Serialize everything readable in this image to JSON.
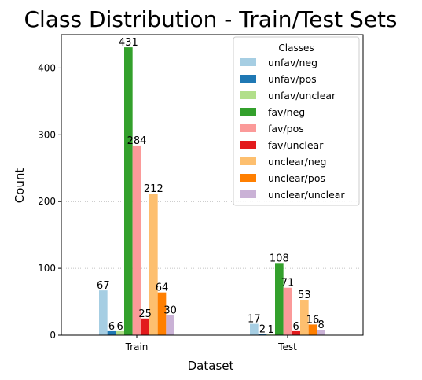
{
  "chart_data": {
    "type": "bar",
    "title": "Class Distribution - Train/Test Sets",
    "xlabel": "Dataset",
    "ylabel": "Count",
    "categories": [
      "Train",
      "Test"
    ],
    "ylim": [
      0,
      450
    ],
    "yticks": [
      0,
      100,
      200,
      300,
      400
    ],
    "grid": "y, dotted",
    "legend": {
      "title": "Classes",
      "placement": "top-right"
    },
    "series": [
      {
        "name": "unfav/neg",
        "color": "#a6cee3",
        "values": [
          67,
          17
        ]
      },
      {
        "name": "unfav/pos",
        "color": "#1f78b4",
        "values": [
          6,
          2
        ]
      },
      {
        "name": "unfav/unclear",
        "color": "#b2df8a",
        "values": [
          6,
          1
        ]
      },
      {
        "name": "fav/neg",
        "color": "#33a02c",
        "values": [
          431,
          108
        ]
      },
      {
        "name": "fav/pos",
        "color": "#fb9a99",
        "values": [
          284,
          71
        ]
      },
      {
        "name": "fav/unclear",
        "color": "#e31a1c",
        "values": [
          25,
          6
        ]
      },
      {
        "name": "unclear/neg",
        "color": "#fdbf6f",
        "values": [
          212,
          53
        ]
      },
      {
        "name": "unclear/pos",
        "color": "#ff7f00",
        "values": [
          64,
          16
        ]
      },
      {
        "name": "unclear/unclear",
        "color": "#cab2d6",
        "values": [
          30,
          8
        ]
      }
    ],
    "bar_labels": [
      [
        "67",
        "6",
        "6",
        "431",
        "284",
        "25",
        "212",
        "64",
        "30"
      ],
      [
        "17",
        "2",
        "1",
        "108",
        "71",
        "6",
        "53",
        "16",
        "8"
      ]
    ]
  }
}
